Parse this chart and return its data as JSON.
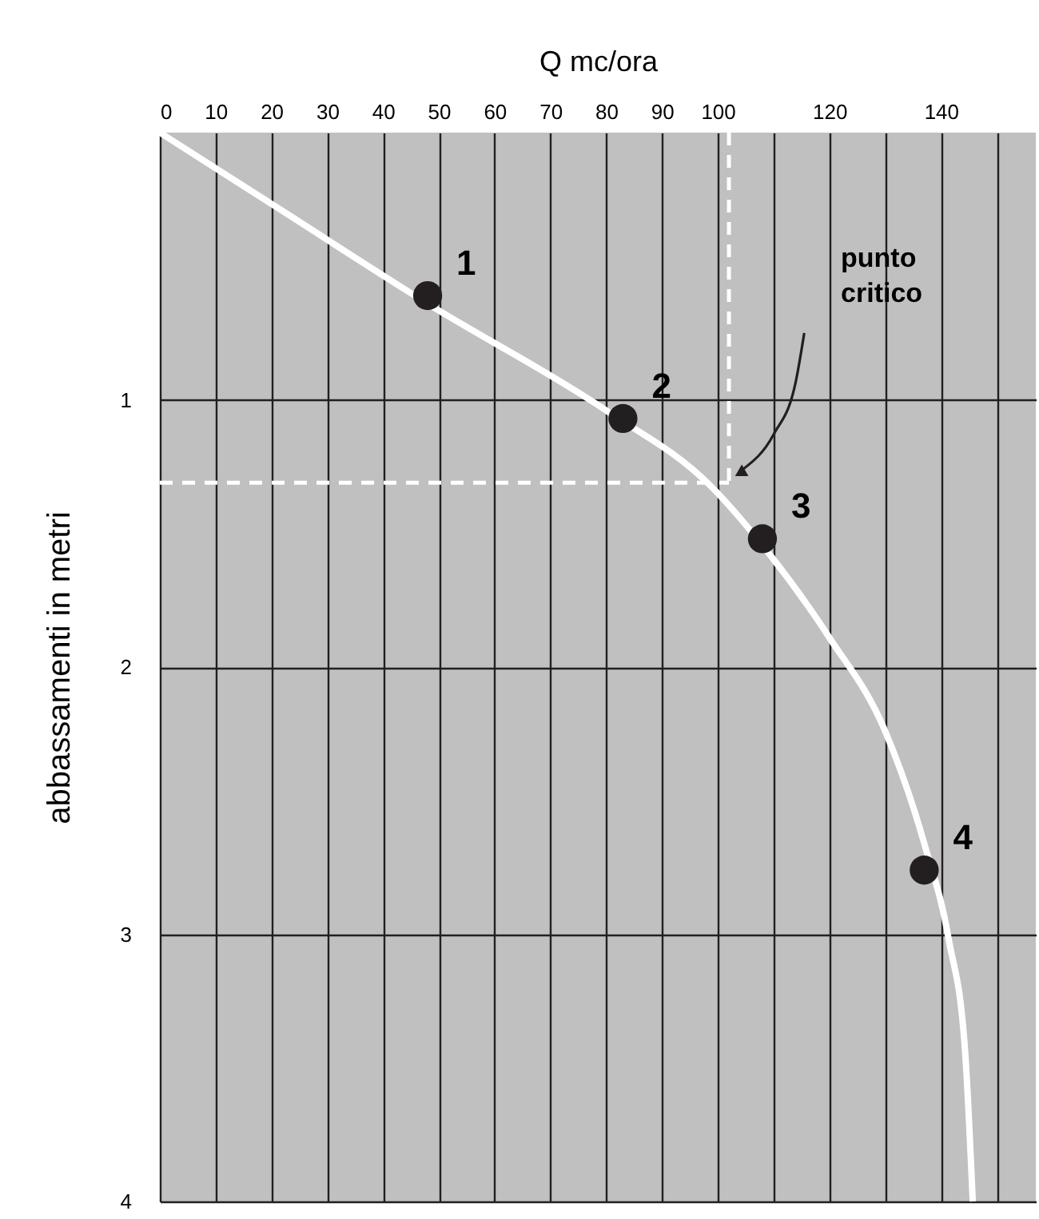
{
  "chart_data": {
    "type": "line",
    "xlabel": "Q mc/ora",
    "ylabel": "abbassamenti in metri",
    "xlim": [
      0,
      157
    ],
    "xticks": [
      0,
      10,
      20,
      30,
      40,
      50,
      60,
      70,
      80,
      90,
      100,
      {
        "value": 110,
        "label": null
      },
      120,
      {
        "value": 130,
        "label": null
      },
      140,
      {
        "value": 150,
        "label": null
      }
    ],
    "ylim": [
      4,
      0
    ],
    "yticks": [
      1,
      2,
      3,
      4
    ],
    "grid": true,
    "series": [
      {
        "color": "#ffffff",
        "x": [
          0,
          21,
          48,
          80,
          98.6,
          108.6,
          120,
          130,
          137,
          141.4,
          144.3,
          145.7
        ],
        "values": [
          0,
          0.28,
          0.64,
          1.04,
          1.32,
          1.56,
          1.89,
          2.24,
          2.66,
          3.02,
          3.43,
          4.0
        ]
      },
      {
        "type": "scatter",
        "color": "#231f20",
        "marker": "circle",
        "x": [
          48,
          83,
          108,
          137
        ],
        "values": [
          0.61,
          1.07,
          1.52,
          2.76
        ]
      }
    ],
    "ref_lines": [
      {
        "axis": "x",
        "value": 102,
        "color": "#ffffff",
        "line_style": "dashed"
      },
      {
        "axis": "y",
        "value": 1.31,
        "color": "#ffffff",
        "line_style": "dashed"
      }
    ],
    "annotations": [
      {
        "text": "1",
        "x": 48,
        "y": 0.61
      },
      {
        "text": "2",
        "x": 83,
        "y": 1.07
      },
      {
        "text": "3",
        "x": 108,
        "y": 1.52
      },
      {
        "text": "4",
        "x": 137,
        "y": 2.76
      },
      "punto critico"
    ]
  }
}
